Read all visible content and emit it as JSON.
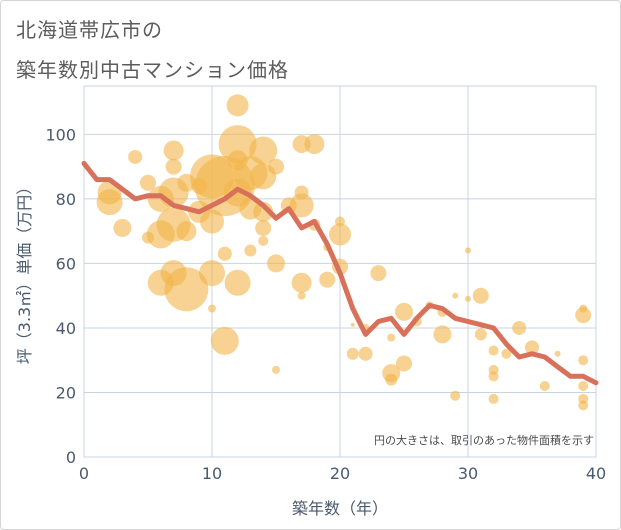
{
  "title": {
    "line1": "北海道帯広市の",
    "line2": "築年数別中古マンション価格"
  },
  "colors": {
    "bubble": "#F2B44A",
    "line": "#D9715A",
    "grid": "#c8d4df",
    "plot_bg": "#ffffff"
  },
  "chart_data": {
    "type": "scatter",
    "title": "北海道帯広市の築年数別中古マンション価格",
    "xlabel": "築年数（年）",
    "ylabel": "坪（3.3㎡）単価（万円）",
    "xlim": [
      0,
      40
    ],
    "ylim": [
      0,
      115
    ],
    "x_ticks": [
      0,
      10,
      20,
      30,
      40
    ],
    "y_ticks": [
      0,
      20,
      40,
      60,
      80,
      100
    ],
    "grid": true,
    "annotation": "円の大きさは、取引のあった物件面積を示す",
    "bubbles": [
      {
        "x": 2,
        "y": 82,
        "size": 12
      },
      {
        "x": 2,
        "y": 79,
        "size": 13
      },
      {
        "x": 3,
        "y": 71,
        "size": 9
      },
      {
        "x": 4,
        "y": 93,
        "size": 7
      },
      {
        "x": 5,
        "y": 85,
        "size": 8
      },
      {
        "x": 5,
        "y": 68,
        "size": 6
      },
      {
        "x": 6,
        "y": 80,
        "size": 13
      },
      {
        "x": 6,
        "y": 69,
        "size": 14
      },
      {
        "x": 6,
        "y": 54,
        "size": 13
      },
      {
        "x": 7,
        "y": 95,
        "size": 10
      },
      {
        "x": 7,
        "y": 90,
        "size": 8
      },
      {
        "x": 7,
        "y": 82,
        "size": 15
      },
      {
        "x": 7,
        "y": 72,
        "size": 17
      },
      {
        "x": 7,
        "y": 57,
        "size": 13
      },
      {
        "x": 8,
        "y": 52,
        "size": 22
      },
      {
        "x": 8,
        "y": 70,
        "size": 10
      },
      {
        "x": 8,
        "y": 85,
        "size": 9
      },
      {
        "x": 9,
        "y": 76,
        "size": 11
      },
      {
        "x": 9,
        "y": 84,
        "size": 8
      },
      {
        "x": 10,
        "y": 87,
        "size": 22
      },
      {
        "x": 10,
        "y": 73,
        "size": 12
      },
      {
        "x": 10,
        "y": 57,
        "size": 13
      },
      {
        "x": 10,
        "y": 46,
        "size": 4
      },
      {
        "x": 11,
        "y": 84,
        "size": 30
      },
      {
        "x": 11,
        "y": 63,
        "size": 7
      },
      {
        "x": 11,
        "y": 36,
        "size": 14
      },
      {
        "x": 12,
        "y": 109,
        "size": 11
      },
      {
        "x": 12,
        "y": 97,
        "size": 19
      },
      {
        "x": 12,
        "y": 92,
        "size": 10
      },
      {
        "x": 12,
        "y": 82,
        "size": 14
      },
      {
        "x": 12,
        "y": 54,
        "size": 13
      },
      {
        "x": 13,
        "y": 88,
        "size": 17
      },
      {
        "x": 13,
        "y": 77,
        "size": 11
      },
      {
        "x": 13,
        "y": 64,
        "size": 6
      },
      {
        "x": 14,
        "y": 95,
        "size": 14
      },
      {
        "x": 14,
        "y": 87,
        "size": 13
      },
      {
        "x": 14,
        "y": 76,
        "size": 10
      },
      {
        "x": 14,
        "y": 71,
        "size": 8
      },
      {
        "x": 14,
        "y": 67,
        "size": 5
      },
      {
        "x": 15,
        "y": 90,
        "size": 8
      },
      {
        "x": 15,
        "y": 60,
        "size": 9
      },
      {
        "x": 15,
        "y": 27,
        "size": 4
      },
      {
        "x": 16,
        "y": 78,
        "size": 8
      },
      {
        "x": 17,
        "y": 97,
        "size": 9
      },
      {
        "x": 17,
        "y": 82,
        "size": 7
      },
      {
        "x": 17,
        "y": 78,
        "size": 12
      },
      {
        "x": 17,
        "y": 54,
        "size": 10
      },
      {
        "x": 17,
        "y": 50,
        "size": 4
      },
      {
        "x": 18,
        "y": 97,
        "size": 10
      },
      {
        "x": 18,
        "y": 72,
        "size": 6
      },
      {
        "x": 19,
        "y": 55,
        "size": 8
      },
      {
        "x": 19,
        "y": 65,
        "size": 4
      },
      {
        "x": 20,
        "y": 73,
        "size": 5
      },
      {
        "x": 20,
        "y": 69,
        "size": 11
      },
      {
        "x": 20,
        "y": 59,
        "size": 8
      },
      {
        "x": 21,
        "y": 32,
        "size": 6
      },
      {
        "x": 21,
        "y": 41,
        "size": 2
      },
      {
        "x": 22,
        "y": 32,
        "size": 7
      },
      {
        "x": 22,
        "y": 40,
        "size": 4
      },
      {
        "x": 23,
        "y": 57,
        "size": 8
      },
      {
        "x": 24,
        "y": 37,
        "size": 4
      },
      {
        "x": 24,
        "y": 26,
        "size": 9
      },
      {
        "x": 24,
        "y": 24,
        "size": 6
      },
      {
        "x": 25,
        "y": 45,
        "size": 9
      },
      {
        "x": 25,
        "y": 29,
        "size": 8
      },
      {
        "x": 26,
        "y": 42,
        "size": 5
      },
      {
        "x": 27,
        "y": 47,
        "size": 4
      },
      {
        "x": 28,
        "y": 38,
        "size": 9
      },
      {
        "x": 28,
        "y": 45,
        "size": 5
      },
      {
        "x": 29,
        "y": 50,
        "size": 3
      },
      {
        "x": 29,
        "y": 19,
        "size": 5
      },
      {
        "x": 30,
        "y": 64,
        "size": 3
      },
      {
        "x": 30,
        "y": 49,
        "size": 3
      },
      {
        "x": 31,
        "y": 50,
        "size": 8
      },
      {
        "x": 31,
        "y": 38,
        "size": 6
      },
      {
        "x": 32,
        "y": 33,
        "size": 5
      },
      {
        "x": 32,
        "y": 27,
        "size": 5
      },
      {
        "x": 32,
        "y": 25,
        "size": 5
      },
      {
        "x": 32,
        "y": 18,
        "size": 5
      },
      {
        "x": 33,
        "y": 32,
        "size": 5
      },
      {
        "x": 34,
        "y": 40,
        "size": 7
      },
      {
        "x": 35,
        "y": 34,
        "size": 7
      },
      {
        "x": 36,
        "y": 22,
        "size": 5
      },
      {
        "x": 37,
        "y": 32,
        "size": 3
      },
      {
        "x": 39,
        "y": 46,
        "size": 4
      },
      {
        "x": 39,
        "y": 44,
        "size": 8
      },
      {
        "x": 39,
        "y": 30,
        "size": 5
      },
      {
        "x": 39,
        "y": 22,
        "size": 5
      },
      {
        "x": 39,
        "y": 18,
        "size": 5
      },
      {
        "x": 39,
        "y": 16,
        "size": 5
      }
    ],
    "trend_line": {
      "x": [
        0,
        1,
        2,
        3,
        4,
        5,
        6,
        7,
        8,
        9,
        10,
        11,
        12,
        13,
        14,
        15,
        16,
        17,
        18,
        19,
        20,
        21,
        22,
        23,
        24,
        25,
        26,
        27,
        28,
        29,
        30,
        31,
        32,
        33,
        34,
        35,
        36,
        37,
        38,
        39,
        40
      ],
      "y": [
        91,
        86,
        86,
        83,
        80,
        81,
        81,
        78,
        77,
        76,
        78,
        80,
        83,
        81,
        78,
        74,
        77,
        71,
        73,
        66,
        57,
        46,
        38,
        42,
        43,
        38,
        43,
        47,
        46,
        43,
        42,
        41,
        40,
        35,
        31,
        32,
        31,
        28,
        25,
        25,
        23
      ]
    }
  }
}
